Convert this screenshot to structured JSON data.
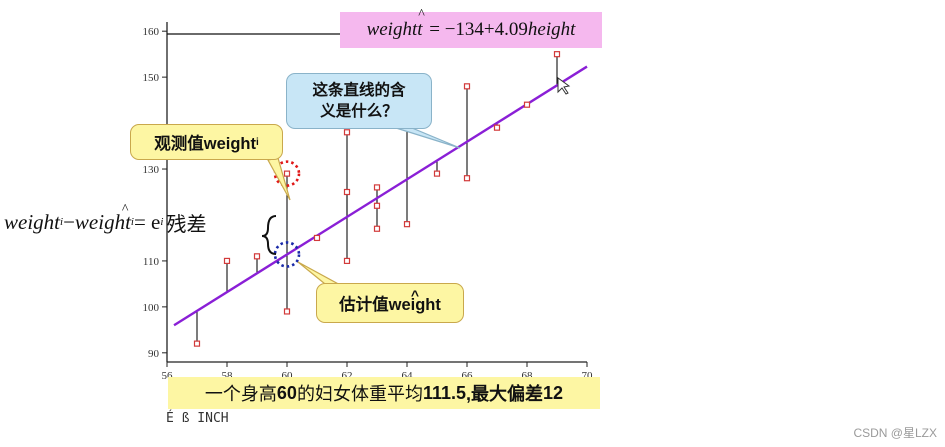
{
  "chart_data": {
    "type": "scatter",
    "title": "",
    "xlabel": "",
    "ylabel": "",
    "xlim": [
      56,
      70
    ],
    "ylim": [
      88,
      162
    ],
    "x_ticks": [
      "56",
      "58",
      "60",
      "62",
      "64",
      "66",
      "68",
      "70"
    ],
    "y_ticks": [
      "90",
      "100",
      "110",
      "130",
      "150",
      "160"
    ],
    "regression_line": {
      "intercept": -134,
      "slope": 4.09
    },
    "points": [
      {
        "x": 57,
        "y": 92
      },
      {
        "x": 58,
        "y": 110
      },
      {
        "x": 59,
        "y": 111
      },
      {
        "x": 60,
        "y": 129
      },
      {
        "x": 60,
        "y": 99
      },
      {
        "x": 61,
        "y": 115
      },
      {
        "x": 62,
        "y": 138
      },
      {
        "x": 62,
        "y": 110
      },
      {
        "x": 62,
        "y": 125
      },
      {
        "x": 63,
        "y": 126
      },
      {
        "x": 63,
        "y": 122
      },
      {
        "x": 63,
        "y": 117
      },
      {
        "x": 64,
        "y": 139
      },
      {
        "x": 64,
        "y": 118
      },
      {
        "x": 65,
        "y": 129
      },
      {
        "x": 66,
        "y": 148
      },
      {
        "x": 66,
        "y": 128
      },
      {
        "x": 67,
        "y": 139
      },
      {
        "x": 68,
        "y": 144
      },
      {
        "x": 69,
        "y": 155
      }
    ],
    "highlight": {
      "observed": {
        "x": 60,
        "y": 129
      },
      "fitted": {
        "x": 60,
        "y": 111.4
      }
    }
  },
  "formula": {
    "lhs": "weight",
    "hat": "^",
    "rhs": "= −134+4.09",
    "rhs_var": "height"
  },
  "callouts": {
    "question": {
      "line1": "这条直线的含",
      "line2": "义是什么？"
    },
    "observed": {
      "text": "观测值weight",
      "sub": "i"
    },
    "fitted": {
      "text": "估计值weight",
      "hat": "^"
    }
  },
  "residual": {
    "w1": "weight",
    "sub1": "i",
    "minus": " − ",
    "w2": "weight",
    "hat": "^",
    "sub2": "i",
    "eq": " = e",
    "sub3": "i",
    "note": "残差"
  },
  "caption": {
    "p1": "一个身高",
    "n1": "60",
    "p2": "的妇女体重平均",
    "n2": "111.5",
    "p3": ",最大偏差",
    "n3": "12"
  },
  "footer_text": "É ß INCH",
  "watermark": "CSDN @星LZX",
  "colors": {
    "regression": "#8a1fd6",
    "point": "#d23a3a",
    "observed_circle": "#e01818",
    "fitted_circle": "#1a2aa8"
  }
}
